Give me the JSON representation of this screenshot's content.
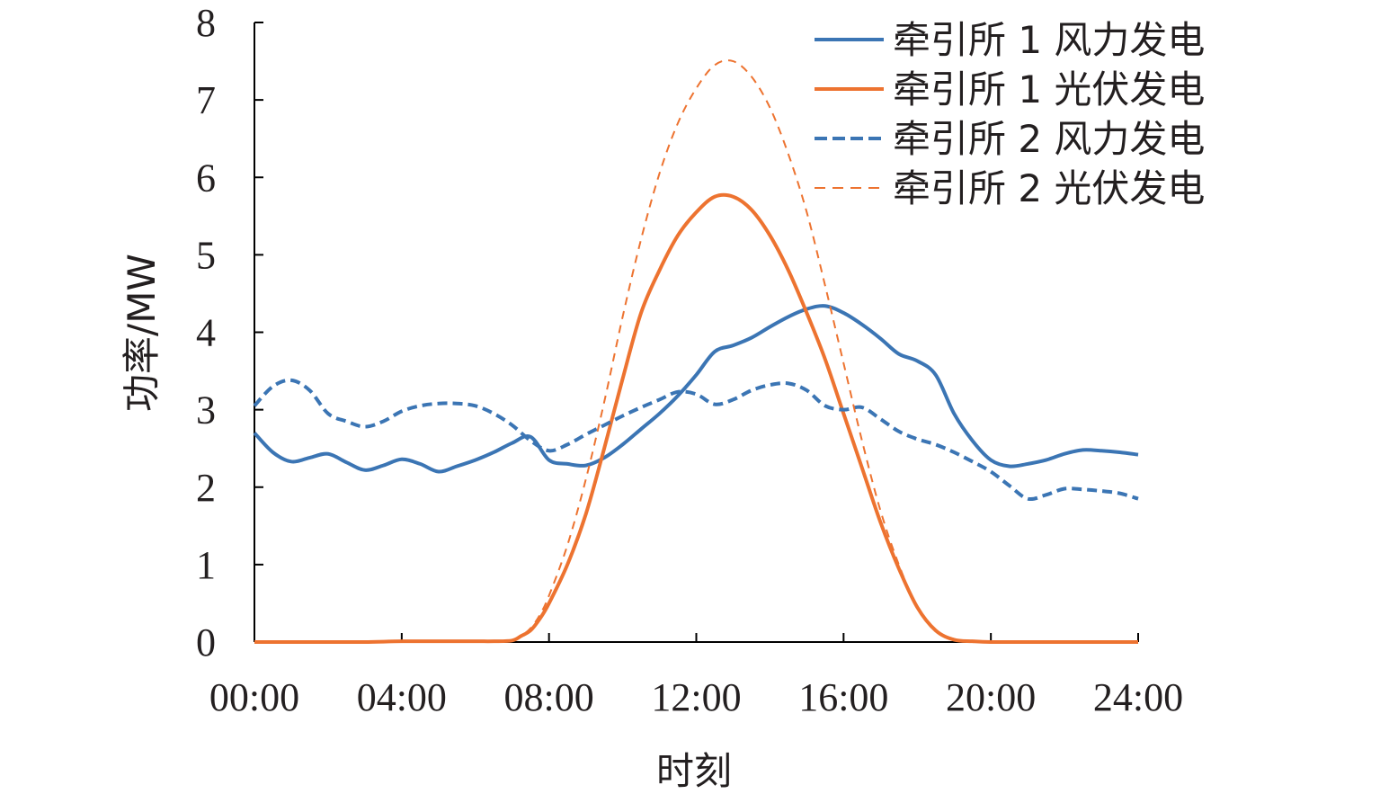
{
  "chart_data": {
    "type": "line",
    "title": "",
    "xlabel": "时刻",
    "ylabel": "功率/MW",
    "xlim": [
      0,
      24
    ],
    "ylim": [
      0,
      8
    ],
    "x_ticks": [
      0,
      4,
      8,
      12,
      16,
      20,
      24
    ],
    "x_tick_labels": [
      "00:00",
      "04:00",
      "08:00",
      "12:00",
      "16:00",
      "20:00",
      "24:00"
    ],
    "y_ticks": [
      0,
      1,
      2,
      3,
      4,
      5,
      6,
      7,
      8
    ],
    "y_tick_labels": [
      "0",
      "1",
      "2",
      "3",
      "4",
      "5",
      "6",
      "7",
      "8"
    ],
    "grid": false,
    "legend_position": "top-right",
    "colors": {
      "blue": "#3b75b4",
      "orange": "#ed7330"
    },
    "series": [
      {
        "name": "牵引所 1 风力发电",
        "color": "#3b75b4",
        "dash": "solid",
        "width": 4,
        "x": [
          0,
          0.5,
          1,
          1.5,
          2,
          2.5,
          3,
          3.5,
          4,
          4.5,
          5,
          5.5,
          6,
          6.5,
          7,
          7.5,
          8,
          8.5,
          9,
          9.5,
          10,
          10.5,
          11,
          11.5,
          12,
          12.5,
          13,
          13.5,
          14,
          14.5,
          15,
          15.5,
          16,
          16.5,
          17,
          17.5,
          18,
          18.5,
          19,
          19.5,
          20,
          20.5,
          21,
          21.5,
          22,
          22.5,
          23,
          23.5,
          24
        ],
        "values": [
          2.7,
          2.45,
          2.33,
          2.38,
          2.43,
          2.32,
          2.22,
          2.28,
          2.36,
          2.3,
          2.2,
          2.27,
          2.35,
          2.45,
          2.57,
          2.65,
          2.35,
          2.3,
          2.28,
          2.38,
          2.55,
          2.75,
          2.95,
          3.18,
          3.45,
          3.75,
          3.83,
          3.93,
          4.07,
          4.2,
          4.3,
          4.34,
          4.25,
          4.1,
          3.92,
          3.72,
          3.63,
          3.45,
          2.95,
          2.6,
          2.35,
          2.27,
          2.3,
          2.35,
          2.43,
          2.48,
          2.47,
          2.45,
          2.42
        ]
      },
      {
        "name": "牵引所 1 光伏发电",
        "color": "#ed7330",
        "dash": "solid",
        "width": 4,
        "x": [
          0,
          1,
          2,
          3,
          4,
          5,
          6,
          6.5,
          7,
          7.25,
          7.5,
          7.75,
          8,
          8.5,
          9,
          9.5,
          10,
          10.5,
          11,
          11.5,
          12,
          12.5,
          13,
          13.5,
          14,
          14.5,
          15,
          15.5,
          16,
          16.5,
          17,
          17.5,
          18,
          18.5,
          19,
          19.5,
          20,
          21,
          22,
          23,
          24
        ],
        "values": [
          0,
          0,
          0,
          0,
          0.01,
          0.01,
          0.01,
          0.01,
          0.02,
          0.08,
          0.15,
          0.3,
          0.5,
          1.0,
          1.65,
          2.5,
          3.4,
          4.25,
          4.8,
          5.25,
          5.55,
          5.75,
          5.75,
          5.58,
          5.25,
          4.8,
          4.25,
          3.65,
          2.95,
          2.25,
          1.55,
          0.95,
          0.45,
          0.15,
          0.03,
          0.01,
          0,
          0,
          0,
          0,
          0
        ]
      },
      {
        "name": "牵引所 2 风力发电",
        "color": "#3b75b4",
        "dash": "dashed",
        "width": 4,
        "x": [
          0,
          0.5,
          1,
          1.5,
          2,
          2.5,
          3,
          3.5,
          4,
          4.5,
          5,
          5.5,
          6,
          6.5,
          7,
          7.5,
          8,
          8.5,
          9,
          9.5,
          10,
          10.5,
          11,
          11.5,
          12,
          12.5,
          13,
          13.5,
          14,
          14.5,
          15,
          15.5,
          16,
          16.5,
          17,
          17.5,
          18,
          18.5,
          19,
          19.5,
          20,
          20.5,
          21,
          21.5,
          22,
          22.5,
          23,
          23.5,
          24
        ],
        "values": [
          3.05,
          3.3,
          3.38,
          3.25,
          2.95,
          2.85,
          2.78,
          2.85,
          2.98,
          3.05,
          3.08,
          3.08,
          3.05,
          2.95,
          2.8,
          2.6,
          2.47,
          2.55,
          2.68,
          2.8,
          2.92,
          3.03,
          3.13,
          3.23,
          3.2,
          3.07,
          3.13,
          3.25,
          3.32,
          3.34,
          3.25,
          3.05,
          3.0,
          3.03,
          2.88,
          2.72,
          2.62,
          2.55,
          2.45,
          2.33,
          2.2,
          2.02,
          1.85,
          1.9,
          1.98,
          1.97,
          1.95,
          1.92,
          1.85
        ]
      },
      {
        "name": "牵引所 2 光伏发电",
        "color": "#ed7330",
        "dash": "dashed-thin",
        "width": 2,
        "x": [
          0,
          1,
          2,
          3,
          4,
          5,
          6,
          6.5,
          7,
          7.25,
          7.5,
          7.75,
          8,
          8.5,
          9,
          9.5,
          10,
          10.5,
          11,
          11.5,
          12,
          12.5,
          13,
          13.5,
          14,
          14.5,
          15,
          15.5,
          16,
          16.5,
          17,
          17.5,
          18,
          18.5,
          19,
          19.5,
          20,
          21,
          22,
          23,
          24
        ],
        "values": [
          0,
          0,
          0,
          0,
          0.01,
          0.01,
          0.01,
          0.01,
          0.02,
          0.08,
          0.18,
          0.35,
          0.6,
          1.25,
          2.1,
          3.1,
          4.2,
          5.2,
          6.05,
          6.7,
          7.15,
          7.45,
          7.5,
          7.3,
          6.9,
          6.3,
          5.55,
          4.6,
          3.6,
          2.6,
          1.7,
          1.0,
          0.45,
          0.15,
          0.04,
          0.01,
          0,
          0,
          0,
          0,
          0
        ]
      }
    ]
  }
}
